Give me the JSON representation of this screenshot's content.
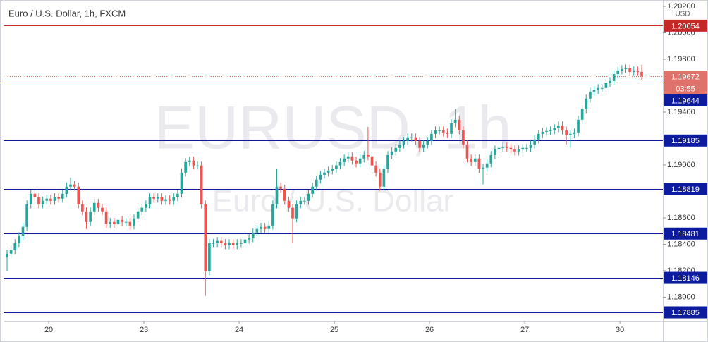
{
  "chart_data": {
    "type": "candlestick",
    "title": "Euro / U.S. Dollar, 1h, FXCM",
    "watermark": "EURUSD, 1h",
    "watermark_subtitle": "Euro / U.S. Dollar",
    "currency": "USD",
    "countdown": "03:55",
    "up_color": "#26a69a",
    "down_color": "#ef5350",
    "xlim": [
      -0.89,
      165.33
    ],
    "ylim": [
      1.17821,
      1.20248
    ],
    "yticks": [
      {
        "value": 1.202,
        "label": "1.20200"
      },
      {
        "value": 1.2,
        "label": "1.20000"
      },
      {
        "value": 1.198,
        "label": "1.19800"
      },
      {
        "value": 1.194,
        "label": "1.19400"
      },
      {
        "value": 1.19,
        "label": "1.19000"
      },
      {
        "value": 1.186,
        "label": "1.18600"
      },
      {
        "value": 1.184,
        "label": "1.18400"
      },
      {
        "value": 1.182,
        "label": "1.18200"
      },
      {
        "value": 1.18,
        "label": "1.18000"
      }
    ],
    "xticks": [
      {
        "value": 10.5,
        "label": "20"
      },
      {
        "value": 34.5,
        "label": "23"
      },
      {
        "value": 58.5,
        "label": "24"
      },
      {
        "value": 82.5,
        "label": "25"
      },
      {
        "value": 106.5,
        "label": "26"
      },
      {
        "value": 130.5,
        "label": "27"
      },
      {
        "value": 154.5,
        "label": "30"
      }
    ],
    "open": [
      1.183,
      1.18329,
      1.18356,
      1.18409,
      1.18462,
      1.18532,
      1.18702,
      1.18782,
      1.18756,
      1.18702,
      1.18729,
      1.18745,
      1.18729,
      1.18756,
      1.18745,
      1.18782,
      1.18836,
      1.18852,
      1.18836,
      1.18702,
      1.18649,
      1.18569,
      1.18649,
      1.18713,
      1.18676,
      1.18649,
      1.18553,
      1.18569,
      1.18553,
      1.18585,
      1.18569,
      1.18569,
      1.18542,
      1.18596,
      1.18649,
      1.18676,
      1.18702,
      1.18756,
      1.18745,
      1.18756,
      1.18729,
      1.1874,
      1.18729,
      1.18756,
      1.18782,
      1.18942,
      1.19022,
      1.19033,
      1.18996,
      1.18996,
      1.18702,
      1.18196,
      1.18409,
      1.18409,
      1.18425,
      1.18409,
      1.18393,
      1.18409,
      1.18393,
      1.18409,
      1.18409,
      1.18436,
      1.18446,
      1.18489,
      1.18516,
      1.18532,
      1.18516,
      1.18542,
      1.18702,
      1.18836,
      1.1882,
      1.18729,
      1.18676,
      1.18596,
      1.18702,
      1.18729,
      1.18729,
      1.18782,
      1.18836,
      1.18889,
      1.18926,
      1.18942,
      1.18958,
      1.18969,
      1.18996,
      1.19022,
      1.19049,
      1.19065,
      1.19033,
      1.19012,
      1.19049,
      1.19075,
      1.19065,
      1.18996,
      1.18942,
      1.18836,
      1.18969,
      1.19075,
      1.19102,
      1.19129,
      1.19155,
      1.19182,
      1.19209,
      1.19209,
      1.19182,
      1.19129,
      1.19155,
      1.19182,
      1.19235,
      1.19262,
      1.19262,
      1.19246,
      1.19235,
      1.19315,
      1.19342,
      1.19262,
      1.19155,
      1.19049,
      1.19022,
      1.19049,
      1.18969,
      1.1898,
      1.19012,
      1.19075,
      1.19118,
      1.19129,
      1.19139,
      1.19129,
      1.19118,
      1.19102,
      1.19118,
      1.19129,
      1.19129,
      1.19155,
      1.19193,
      1.19235,
      1.19251,
      1.19257,
      1.19262,
      1.19278,
      1.19299,
      1.19262,
      1.19225,
      1.19235,
      1.19246,
      1.19342,
      1.19422,
      1.19502,
      1.19555,
      1.19566,
      1.19582,
      1.19582,
      1.19619,
      1.19635,
      1.19688,
      1.19715,
      1.19726,
      1.19731,
      1.19704,
      1.19715,
      1.19704
    ],
    "high": [
      1.18359,
      1.18386,
      1.18439,
      1.18492,
      1.18562,
      1.18732,
      1.18812,
      1.18812,
      1.18786,
      1.18759,
      1.18775,
      1.18775,
      1.18786,
      1.18786,
      1.18812,
      1.18866,
      1.18905,
      1.18882,
      1.18866,
      1.18732,
      1.18679,
      1.18679,
      1.18743,
      1.18743,
      1.18706,
      1.18679,
      1.18599,
      1.18599,
      1.18615,
      1.18615,
      1.18599,
      1.18599,
      1.18626,
      1.18679,
      1.18706,
      1.18732,
      1.18786,
      1.18786,
      1.18786,
      1.18786,
      1.1877,
      1.1877,
      1.18786,
      1.18812,
      1.18972,
      1.19052,
      1.19063,
      1.19063,
      1.19026,
      1.19026,
      1.18732,
      1.18439,
      1.18439,
      1.18455,
      1.18455,
      1.18439,
      1.18439,
      1.18439,
      1.18439,
      1.18439,
      1.18466,
      1.18476,
      1.18519,
      1.18546,
      1.18562,
      1.18562,
      1.18572,
      1.18732,
      1.18969,
      1.18866,
      1.1885,
      1.18759,
      1.18706,
      1.18732,
      1.18759,
      1.18759,
      1.18812,
      1.18866,
      1.18919,
      1.18956,
      1.18972,
      1.18988,
      1.18999,
      1.19026,
      1.19052,
      1.19079,
      1.19095,
      1.19095,
      1.19063,
      1.19079,
      1.19105,
      1.19289,
      1.19095,
      1.19026,
      1.18972,
      1.18999,
      1.19105,
      1.19132,
      1.19159,
      1.19185,
      1.19212,
      1.19239,
      1.19239,
      1.19239,
      1.19212,
      1.19185,
      1.19212,
      1.19265,
      1.19292,
      1.19292,
      1.19292,
      1.19276,
      1.19345,
      1.19422,
      1.19372,
      1.19292,
      1.19185,
      1.19079,
      1.19079,
      1.19079,
      1.1901,
      1.19042,
      1.19105,
      1.19148,
      1.19159,
      1.19169,
      1.19169,
      1.19159,
      1.19148,
      1.19148,
      1.19159,
      1.19159,
      1.19185,
      1.19223,
      1.19265,
      1.19281,
      1.19287,
      1.19292,
      1.19308,
      1.19329,
      1.19329,
      1.19292,
      1.19265,
      1.19276,
      1.19372,
      1.19452,
      1.19532,
      1.19585,
      1.19596,
      1.19612,
      1.19612,
      1.19649,
      1.19665,
      1.19718,
      1.19745,
      1.19756,
      1.19761,
      1.19761,
      1.19745,
      1.19745,
      1.19758
    ],
    "low": [
      1.182,
      1.18299,
      1.18326,
      1.18379,
      1.18432,
      1.18502,
      1.18672,
      1.18726,
      1.18672,
      1.18672,
      1.18699,
      1.18699,
      1.18699,
      1.18715,
      1.18715,
      1.18752,
      1.18806,
      1.18806,
      1.18672,
      1.18619,
      1.18516,
      1.18539,
      1.18619,
      1.18646,
      1.18619,
      1.18523,
      1.18523,
      1.18523,
      1.18523,
      1.18539,
      1.18539,
      1.18512,
      1.18512,
      1.18566,
      1.18619,
      1.18646,
      1.18672,
      1.18715,
      1.18715,
      1.18699,
      1.18699,
      1.18699,
      1.18699,
      1.18726,
      1.18752,
      1.18912,
      1.18992,
      1.18966,
      1.18966,
      1.18672,
      1.1801,
      1.18166,
      1.18379,
      1.18379,
      1.18379,
      1.18363,
      1.18363,
      1.18363,
      1.18363,
      1.18379,
      1.18379,
      1.18406,
      1.18416,
      1.18459,
      1.18486,
      1.18486,
      1.18486,
      1.18512,
      1.18672,
      1.1879,
      1.18699,
      1.18646,
      1.18409,
      1.18566,
      1.18672,
      1.18699,
      1.18699,
      1.18752,
      1.18806,
      1.18859,
      1.18896,
      1.18912,
      1.18928,
      1.18939,
      1.18966,
      1.18992,
      1.19019,
      1.19003,
      1.18982,
      1.18982,
      1.19019,
      1.19035,
      1.18966,
      1.18912,
      1.18806,
      1.18806,
      1.18939,
      1.19045,
      1.19072,
      1.19099,
      1.19125,
      1.19152,
      1.19179,
      1.19152,
      1.19099,
      1.19099,
      1.19125,
      1.19152,
      1.19205,
      1.19232,
      1.19216,
      1.19205,
      1.19205,
      1.19285,
      1.19232,
      1.19125,
      1.19019,
      1.18992,
      1.18992,
      1.18939,
      1.18852,
      1.1895,
      1.18982,
      1.19045,
      1.19088,
      1.19099,
      1.19099,
      1.19088,
      1.19072,
      1.19072,
      1.19088,
      1.19099,
      1.19099,
      1.19125,
      1.19163,
      1.19205,
      1.19221,
      1.19227,
      1.19232,
      1.19248,
      1.19232,
      1.19155,
      1.19129,
      1.19205,
      1.19216,
      1.19312,
      1.19392,
      1.19472,
      1.19525,
      1.19536,
      1.19552,
      1.19552,
      1.19589,
      1.19605,
      1.19658,
      1.19685,
      1.19696,
      1.19674,
      1.19674,
      1.19674,
      1.19642
    ],
    "close": [
      1.18329,
      1.18356,
      1.18409,
      1.18462,
      1.18532,
      1.18702,
      1.18782,
      1.18756,
      1.18702,
      1.18729,
      1.18745,
      1.18729,
      1.18756,
      1.18745,
      1.18782,
      1.18836,
      1.18852,
      1.18836,
      1.18702,
      1.18649,
      1.18569,
      1.18649,
      1.18713,
      1.18676,
      1.18649,
      1.18553,
      1.18569,
      1.18553,
      1.18585,
      1.18569,
      1.18569,
      1.18542,
      1.18596,
      1.18649,
      1.18676,
      1.18702,
      1.18756,
      1.18745,
      1.18756,
      1.18729,
      1.1874,
      1.18729,
      1.18756,
      1.18782,
      1.18942,
      1.19022,
      1.19033,
      1.18996,
      1.18996,
      1.18702,
      1.18196,
      1.18409,
      1.18409,
      1.18425,
      1.18409,
      1.18393,
      1.18409,
      1.18393,
      1.18409,
      1.18409,
      1.18436,
      1.18446,
      1.18489,
      1.18516,
      1.18532,
      1.18516,
      1.18542,
      1.18702,
      1.18836,
      1.1882,
      1.18729,
      1.18676,
      1.18596,
      1.18702,
      1.18729,
      1.18729,
      1.18782,
      1.18836,
      1.18889,
      1.18926,
      1.18942,
      1.18958,
      1.18969,
      1.18996,
      1.19022,
      1.19049,
      1.19065,
      1.19033,
      1.19012,
      1.19049,
      1.19075,
      1.19065,
      1.18996,
      1.18942,
      1.18836,
      1.18969,
      1.19075,
      1.19102,
      1.19129,
      1.19155,
      1.19182,
      1.19209,
      1.19209,
      1.19182,
      1.19129,
      1.19155,
      1.19182,
      1.19235,
      1.19262,
      1.19262,
      1.19246,
      1.19235,
      1.19315,
      1.19342,
      1.19262,
      1.19155,
      1.19049,
      1.19022,
      1.19049,
      1.18969,
      1.1898,
      1.19012,
      1.19075,
      1.19118,
      1.19129,
      1.19139,
      1.19129,
      1.19118,
      1.19102,
      1.19118,
      1.19129,
      1.19129,
      1.19155,
      1.19193,
      1.19235,
      1.19251,
      1.19257,
      1.19262,
      1.19278,
      1.19299,
      1.19262,
      1.19225,
      1.19235,
      1.19246,
      1.19342,
      1.19422,
      1.19502,
      1.19555,
      1.19566,
      1.19582,
      1.19582,
      1.19619,
      1.19635,
      1.19688,
      1.19715,
      1.19726,
      1.19731,
      1.19704,
      1.19715,
      1.19704,
      1.19672
    ],
    "levels": [
      {
        "value": 1.20054,
        "color": "#c62828"
      },
      {
        "value": 1.19644,
        "color": "#0d1b9e"
      },
      {
        "value": 1.19185,
        "color": "#0d1b9e"
      },
      {
        "value": 1.18819,
        "color": "#0d1b9e"
      },
      {
        "value": 1.18481,
        "color": "#0d1b9e"
      },
      {
        "value": 1.18146,
        "color": "#0d1b9e"
      },
      {
        "value": 1.17885,
        "color": "#0d1b9e"
      }
    ],
    "current_price": {
      "value": 1.19672,
      "color": "#e0726c"
    }
  }
}
